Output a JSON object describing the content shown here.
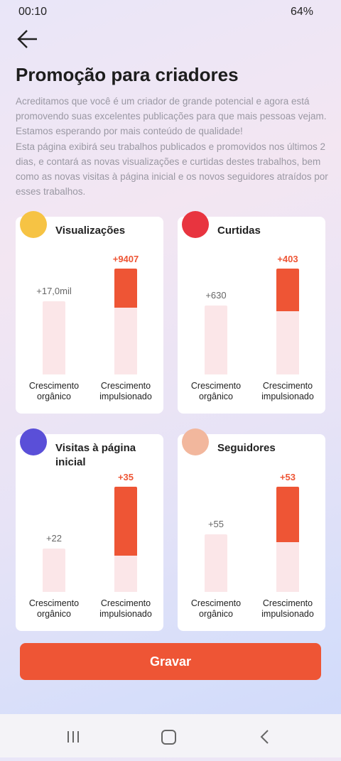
{
  "status_bar": {
    "time": "00:10",
    "battery": "64%"
  },
  "header": {
    "title": "Promoção para criadores",
    "intro": "Acreditamos que você é um criador de grande potencial e agora está promovendo suas excelentes publicações para que mais pessoas vejam. Estamos esperando por mais conteúdo de qualidade!",
    "description": "Esta página exibirá seu trabalhos publicados e promovidos nos últimos 2 dias, e contará as novas visualizações e curtidas destes trabalhos, bem como as novas visitas à página inicial e os novos seguidores atraídos por esses trabalhos."
  },
  "cards": [
    {
      "title": "Visualizações",
      "organic_value": "+17,0mil",
      "boosted_value": "+9407",
      "organic_label": "Crescimento orgânico",
      "boosted_label": "Crescimento impulsionado"
    },
    {
      "title": "Curtidas",
      "organic_value": "+630",
      "boosted_value": "+403",
      "organic_label": "Crescimento orgânico",
      "boosted_label": "Crescimento impulsionado"
    },
    {
      "title": "Visitas à página inicial",
      "organic_value": "+22",
      "boosted_value": "+35",
      "organic_label": "Crescimento orgânico",
      "boosted_label": "Crescimento impulsionado"
    },
    {
      "title": "Seguidores",
      "organic_value": "+55",
      "boosted_value": "+53",
      "organic_label": "Crescimento orgânico",
      "boosted_label": "Crescimento impulsionado"
    }
  ],
  "button": {
    "label": "Gravar"
  }
}
